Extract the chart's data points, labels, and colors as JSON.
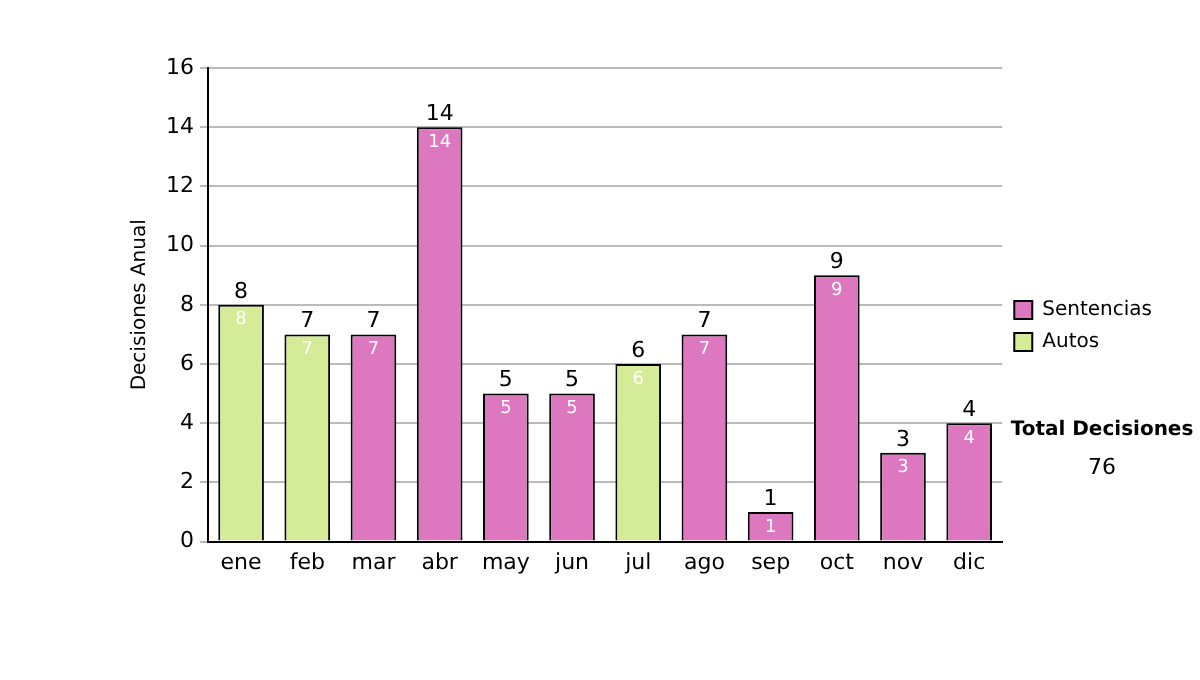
{
  "chart_data": {
    "type": "bar",
    "ylabel": "Decisiones Anual",
    "categories": [
      "ene",
      "feb",
      "mar",
      "abr",
      "may",
      "jun",
      "jul",
      "ago",
      "sep",
      "oct",
      "nov",
      "dic"
    ],
    "series": [
      {
        "name": "Sentencias",
        "color": "#dd77c0",
        "values": [
          null,
          null,
          7,
          14,
          5,
          5,
          null,
          7,
          1,
          9,
          3,
          4
        ]
      },
      {
        "name": "Autos",
        "color": "#d4ec98",
        "values": [
          8,
          7,
          null,
          null,
          null,
          null,
          6,
          null,
          null,
          null,
          null,
          null
        ]
      }
    ],
    "stacked": true,
    "ylim": [
      0,
      16
    ],
    "yticks": [
      0,
      2,
      4,
      6,
      8,
      10,
      12,
      14,
      16
    ],
    "grid": "y",
    "legend": "right",
    "data_labels": true,
    "annotations": [
      "Total Decisiones",
      "76",
      {
        "text": "8",
        "x": "ene",
        "y": 8
      },
      {
        "text": "7",
        "x": "feb",
        "y": 7
      },
      {
        "text": "7",
        "x": "mar",
        "y": 7
      },
      {
        "text": "14",
        "x": "abr",
        "y": 14
      },
      {
        "text": "5",
        "x": "may",
        "y": 5
      },
      {
        "text": "5",
        "x": "jun",
        "y": 5
      },
      {
        "text": "6",
        "x": "jul",
        "y": 6
      },
      {
        "text": "7",
        "x": "ago",
        "y": 7
      },
      {
        "text": "1",
        "x": "sep",
        "y": 1
      },
      {
        "text": "9",
        "x": "oct",
        "y": 9
      },
      {
        "text": "3",
        "x": "nov",
        "y": 3
      },
      {
        "text": "4",
        "x": "dic",
        "y": 4
      }
    ]
  }
}
